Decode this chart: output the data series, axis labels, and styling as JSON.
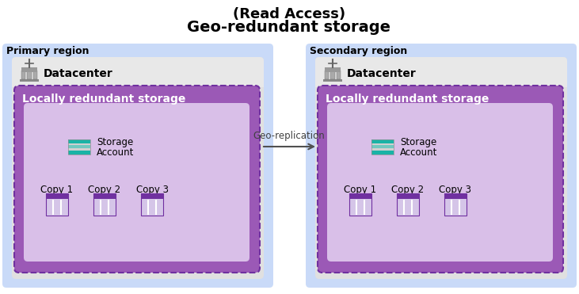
{
  "title_line1": "(Read Access)",
  "title_line2": "Geo-redundant storage",
  "primary_label": "Primary region",
  "secondary_label": "Secondary region",
  "datacenter_label": "Datacenter",
  "lrs_label": "Locally redundant storage",
  "storage_label1": "Storage",
  "storage_label2": "Account",
  "copy_labels": [
    "Copy 1",
    "Copy 2",
    "Copy 3"
  ],
  "arrow_label": "Geo-replication",
  "bg_light_blue": "#c9daf8",
  "datacenter_bg": "#e0e0e0",
  "datacenter_header_bg": "#d4d4d4",
  "lrs_purple_dark": "#7030a0",
  "lrs_purple_mid": "#9b59b6",
  "lrs_purple_light": "#d9bfe8",
  "lrs_innermost": "#e8d5f5",
  "storage_teal_dark": "#1ab3a6",
  "storage_teal_mid": "#70c8c0",
  "storage_gray": "#b0b0b0",
  "copy_purple_dark": "#7030a0",
  "copy_purple_light": "#b09fcc",
  "copy_purple_bg": "#d5c5e8",
  "arrow_color": "#505050",
  "white": "#ffffff",
  "title_fs": 13,
  "region_fs": 9,
  "dc_fs": 10,
  "lrs_fs": 10,
  "sa_fs": 8.5,
  "copy_fs": 8.5,
  "arrow_fs": 8.5
}
